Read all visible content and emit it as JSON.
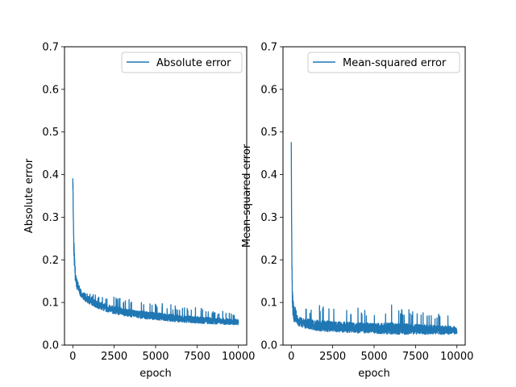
{
  "chart_data": [
    {
      "type": "line",
      "title": "",
      "xlabel": "epoch",
      "ylabel": "Absolute error",
      "xlim": [
        -500,
        10500
      ],
      "ylim": [
        0,
        0.7
      ],
      "xticks": [
        0,
        2500,
        5000,
        7500,
        10000
      ],
      "yticks": [
        0.0,
        0.1,
        0.2,
        0.3,
        0.4,
        0.5,
        0.6,
        0.7
      ],
      "legend_position": "top-right",
      "grid": false,
      "series": [
        {
          "name": "Absolute error",
          "color": "#1f77b4",
          "x": [
            0,
            30,
            60,
            100,
            150,
            200,
            300,
            400,
            500,
            750,
            1000,
            1500,
            2000,
            2500,
            3000,
            4000,
            5000,
            6000,
            7000,
            8000,
            9000,
            10000
          ],
          "y": [
            0.4,
            0.31,
            0.24,
            0.2,
            0.17,
            0.155,
            0.14,
            0.13,
            0.12,
            0.112,
            0.105,
            0.095,
            0.088,
            0.082,
            0.078,
            0.072,
            0.068,
            0.064,
            0.061,
            0.058,
            0.056,
            0.054
          ],
          "noise_min": [
            0.085,
            0.08,
            0.075,
            0.068,
            0.064,
            0.06,
            0.056,
            0.053,
            0.05,
            0.047,
            0.045
          ],
          "noise_max": [
            0.13,
            0.12,
            0.115,
            0.11,
            0.105,
            0.1,
            0.095,
            0.09,
            0.085,
            0.08,
            0.075
          ]
        }
      ]
    },
    {
      "type": "line",
      "title": "",
      "xlabel": "epoch",
      "ylabel": "Mean-squared error",
      "xlim": [
        -500,
        10500
      ],
      "ylim": [
        0,
        0.7
      ],
      "xticks": [
        0,
        2500,
        5000,
        7500,
        10000
      ],
      "yticks": [
        0.0,
        0.1,
        0.2,
        0.3,
        0.4,
        0.5,
        0.6,
        0.7
      ],
      "legend_position": "top-right",
      "grid": false,
      "series": [
        {
          "name": "Mean-squared error",
          "color": "#1f77b4",
          "x": [
            0,
            20,
            40,
            60,
            100,
            150,
            200,
            300,
            400,
            500,
            750,
            1000,
            1500,
            2000,
            3000,
            4000,
            5000,
            6000,
            7000,
            8000,
            9000,
            10000
          ],
          "y": [
            0.46,
            0.3,
            0.19,
            0.12,
            0.09,
            0.075,
            0.068,
            0.062,
            0.058,
            0.055,
            0.052,
            0.05,
            0.047,
            0.045,
            0.043,
            0.041,
            0.04,
            0.039,
            0.038,
            0.037,
            0.036,
            0.035
          ],
          "noise_min": [
            0.04,
            0.038,
            0.035,
            0.033,
            0.031,
            0.03,
            0.029,
            0.028,
            0.027,
            0.026,
            0.025
          ],
          "noise_max": [
            0.09,
            0.09,
            0.095,
            0.09,
            0.088,
            0.085,
            0.095,
            0.085,
            0.08,
            0.075,
            0.065
          ]
        }
      ]
    }
  ]
}
